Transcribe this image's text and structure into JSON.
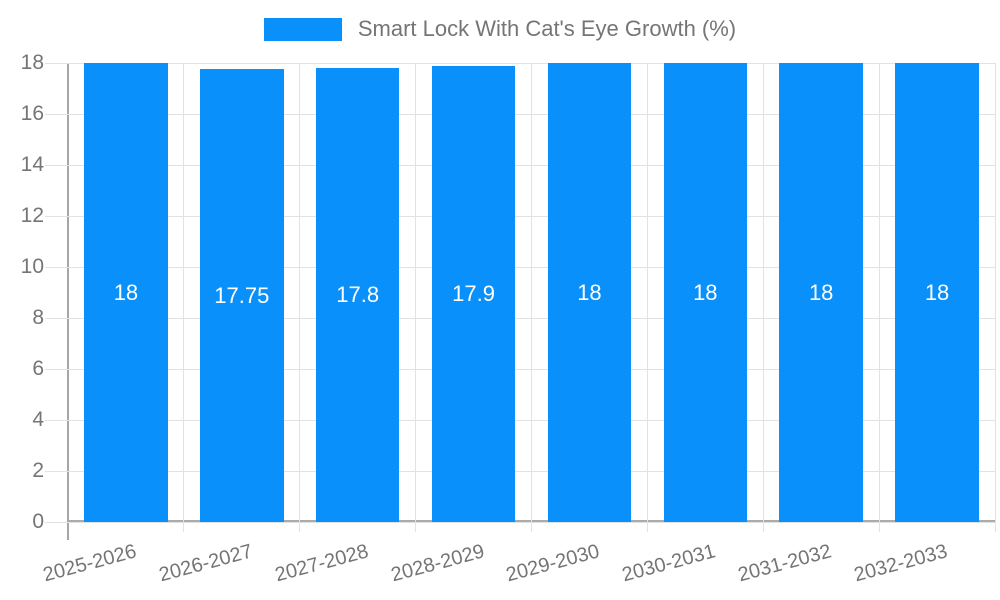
{
  "legend": {
    "label": "Smart Lock With Cat's Eye Growth (%)",
    "swatch_color": "#0990FA"
  },
  "chart_data": {
    "type": "bar",
    "title": "Smart Lock With Cat's Eye Growth (%)",
    "categories": [
      "2025-2026",
      "2026-2027",
      "2027-2028",
      "2028-2029",
      "2029-2030",
      "2030-2031",
      "2031-2032",
      "2032-2033"
    ],
    "series": [
      {
        "name": "Smart Lock With Cat's Eye Growth (%)",
        "values": [
          18,
          17.75,
          17.8,
          17.9,
          18,
          18,
          18,
          18
        ]
      }
    ],
    "value_labels": [
      "18",
      "17.75",
      "17.8",
      "17.9",
      "18",
      "18",
      "18",
      "18"
    ],
    "xlabel": "",
    "ylabel": "",
    "ylim": [
      0,
      18
    ],
    "yticks": [
      0,
      2,
      4,
      6,
      8,
      10,
      12,
      14,
      16,
      18
    ],
    "grid": true,
    "legend_position": "top",
    "x_tick_rotation_deg": -15,
    "colors": {
      "bar": "#0990FA",
      "data_label": "#FFFFFF",
      "tick_label": "#757575",
      "legend_text": "#757575",
      "gridline": "#E2E2E2",
      "axis_line": "#A6A6A6",
      "background": "#FFFFFF"
    }
  }
}
